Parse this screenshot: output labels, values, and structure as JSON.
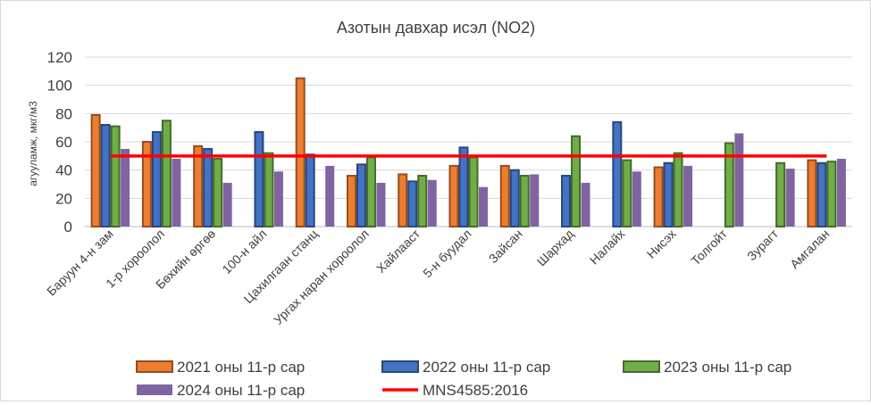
{
  "chart_data": {
    "type": "bar",
    "title": "Азотын давхар исэл (NO2)",
    "xlabel": "",
    "ylabel": "агууламж, мкг/м3",
    "ylim": [
      0,
      120
    ],
    "yticks": [
      0,
      20,
      40,
      60,
      80,
      100,
      120
    ],
    "grid": true,
    "legend_position": "bottom",
    "categories": [
      "Баруун 4-н зам",
      "1-р хороолол",
      "Бөхийн өргөө",
      "100-н айл",
      "Цахилгаан станц",
      "Ургах наран хороолол",
      "Хайлааст",
      "5-н буудал",
      "Зайсан",
      "Шархад",
      "Налайх",
      "Нисэх",
      "Толгойт",
      "Зурагт",
      "Амгалан"
    ],
    "series": [
      {
        "name": "2021 оны 11-р сар",
        "color": "#ED7D31",
        "style": "bar",
        "values": [
          79,
          60,
          57,
          null,
          105,
          36,
          37,
          43,
          43,
          null,
          null,
          42,
          null,
          null,
          47
        ]
      },
      {
        "name": "2022 оны 11-р сар",
        "color": "#4472C4",
        "style": "bar",
        "values": [
          72,
          67,
          55,
          67,
          51,
          44,
          32,
          56,
          40,
          36,
          74,
          45,
          null,
          null,
          45
        ]
      },
      {
        "name": "2023 оны 11-р сар",
        "color": "#70AD47",
        "style": "bar",
        "values": [
          71,
          75,
          48,
          52,
          null,
          49,
          36,
          49,
          36,
          64,
          47,
          52,
          59,
          45,
          46
        ]
      },
      {
        "name": "2024 оны 11-р сар",
        "color": "#8064A2",
        "style": "bar",
        "values": [
          55,
          48,
          31,
          39,
          43,
          31,
          33,
          28,
          37,
          31,
          39,
          43,
          66,
          41,
          48
        ]
      },
      {
        "name": "MNS4585:2016",
        "color": "#FF0000",
        "style": "line",
        "values": [
          50,
          50,
          50,
          50,
          50,
          50,
          50,
          50,
          50,
          50,
          50,
          50,
          50,
          50,
          50
        ]
      }
    ]
  }
}
